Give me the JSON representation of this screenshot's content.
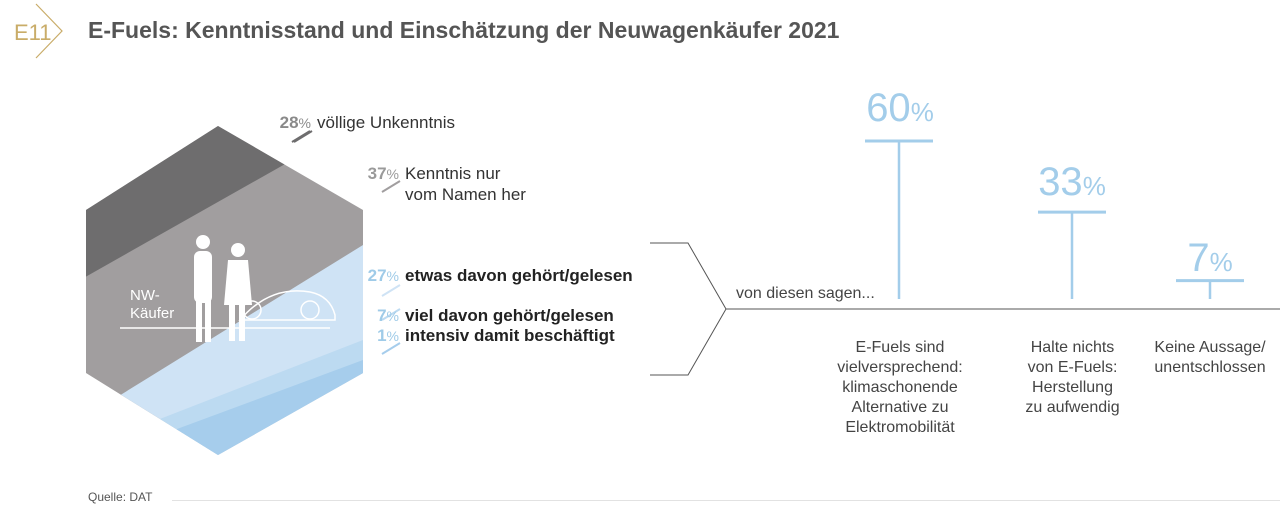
{
  "header": {
    "badge": "E11",
    "title": "E-Fuels: Kenntnisstand und Einschätzung der Neuwagenkäufer 2021"
  },
  "hexagon": {
    "label_line1": "NW-",
    "label_line2": "Käufer"
  },
  "chart_data": [
    {
      "type": "stacked-area",
      "title": "Kenntnisstand E-Fuels",
      "segments": [
        {
          "pct_num": "28",
          "pct_sign": "%",
          "label": "völlige Unkenntnis",
          "value": 28,
          "color": "#6e6d6e"
        },
        {
          "pct_num": "37",
          "pct_sign": "%",
          "label_line1": "Kenntnis nur",
          "label_line2": "vom Namen her",
          "value": 37,
          "color": "#a19e9f"
        },
        {
          "pct_num": "27",
          "pct_sign": "%",
          "label": "etwas davon gehört/gelesen",
          "value": 27,
          "color": "#cfe3f5"
        },
        {
          "pct_num": "7",
          "pct_sign": "%",
          "label": "viel davon gehört/gelesen",
          "value": 7,
          "color": "#bfdcf2"
        },
        {
          "pct_num": "1",
          "pct_sign": "%",
          "label": "intensiv damit beschäftigt",
          "value": 1,
          "color": "#a6cdec"
        }
      ]
    },
    {
      "type": "bar",
      "title": "von diesen sagen...",
      "categories": [
        {
          "line1": "E-Fuels sind",
          "line2": "vielversprechend:",
          "line3": "klimaschonende",
          "line4": "Alternative zu",
          "line5": "Elektromobilität"
        },
        {
          "line1": "Halte nichts",
          "line2": "von E-Fuels:",
          "line3": "Herstellung",
          "line4": "zu aufwendig"
        },
        {
          "line1": "Keine Aussage/",
          "line2": "unentschlossen"
        }
      ],
      "values": [
        60,
        33,
        7
      ],
      "value_labels": [
        "60",
        "33",
        "7"
      ],
      "unit": "%",
      "ylim": [
        0,
        60
      ]
    }
  ],
  "von_label": "von diesen sagen...",
  "colors": {
    "gold": "#c9ac68",
    "blue": "#a3cdea",
    "grey_dark": "#6e6d6e",
    "grey": "#a19e9f",
    "light_blue": "#cfe3f5"
  },
  "source": "Quelle: DAT"
}
